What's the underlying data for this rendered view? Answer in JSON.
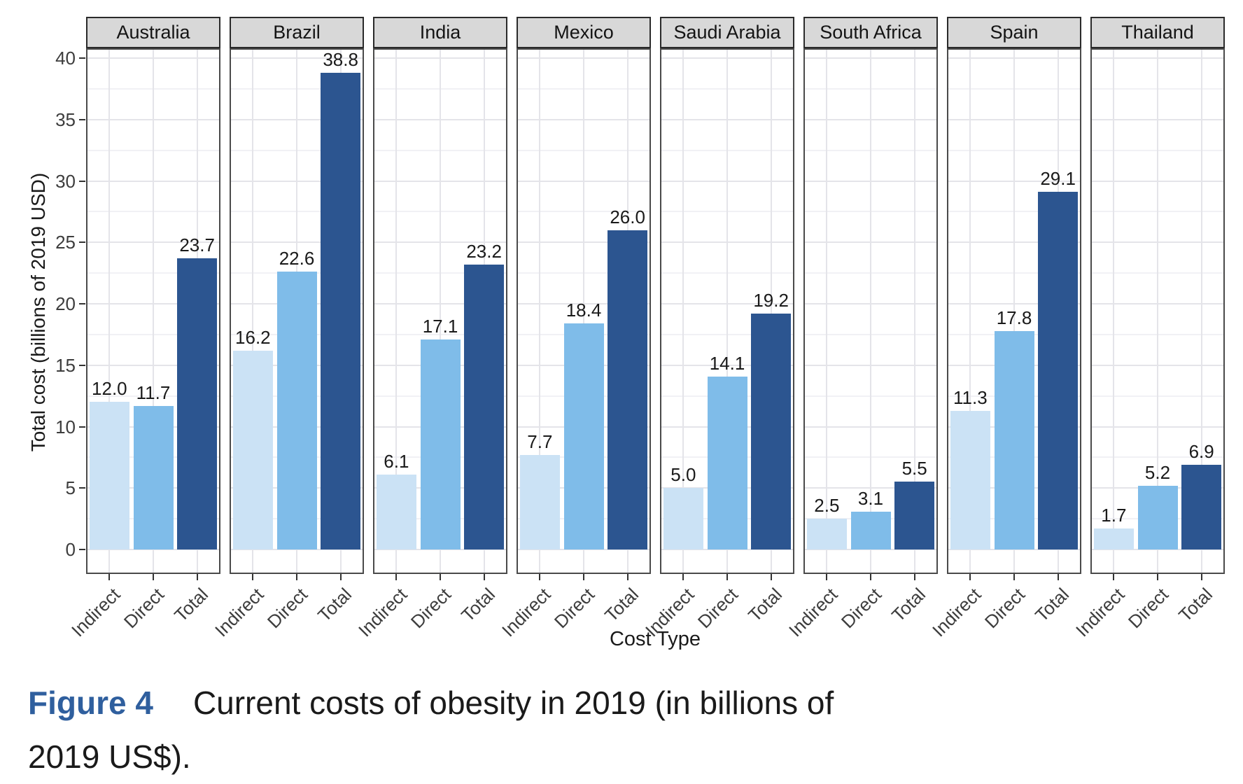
{
  "figure": {
    "caption": {
      "label": "Figure 4",
      "line1": "Current costs of obesity in 2019 (in billions of",
      "line2": "2019 US$).",
      "label_color": "#2f5f9e"
    }
  },
  "chart_data": {
    "type": "bar",
    "title": "",
    "facet_variable": "country",
    "categories": [
      "Indirect",
      "Direct",
      "Total"
    ],
    "facets": [
      {
        "name": "Australia",
        "values": [
          12.0,
          11.7,
          23.7
        ]
      },
      {
        "name": "Brazil",
        "values": [
          16.2,
          22.6,
          38.8
        ]
      },
      {
        "name": "India",
        "values": [
          6.1,
          17.1,
          23.2
        ]
      },
      {
        "name": "Mexico",
        "values": [
          7.7,
          18.4,
          26.0
        ]
      },
      {
        "name": "Saudi Arabia",
        "values": [
          5.0,
          14.1,
          19.2
        ]
      },
      {
        "name": "South Africa",
        "values": [
          2.5,
          3.1,
          5.5
        ]
      },
      {
        "name": "Spain",
        "values": [
          11.3,
          17.8,
          29.1
        ]
      },
      {
        "name": "Thailand",
        "values": [
          1.7,
          5.2,
          6.9
        ]
      }
    ],
    "xlabel": "Cost Type",
    "ylabel": "Total cost (billions of 2019 USD)",
    "ylim": [
      0,
      40
    ],
    "yticks": [
      0,
      5,
      10,
      15,
      20,
      25,
      30,
      35,
      40
    ],
    "grid": "major+minor",
    "legend": "none",
    "value_label_decimals": 1,
    "colors": {
      "Indirect": "#cbe2f5",
      "Direct": "#7fbce9",
      "Total": "#2c5590"
    },
    "strip_bg": "#d8d8d8",
    "panel_border": "#4a4a4a"
  }
}
